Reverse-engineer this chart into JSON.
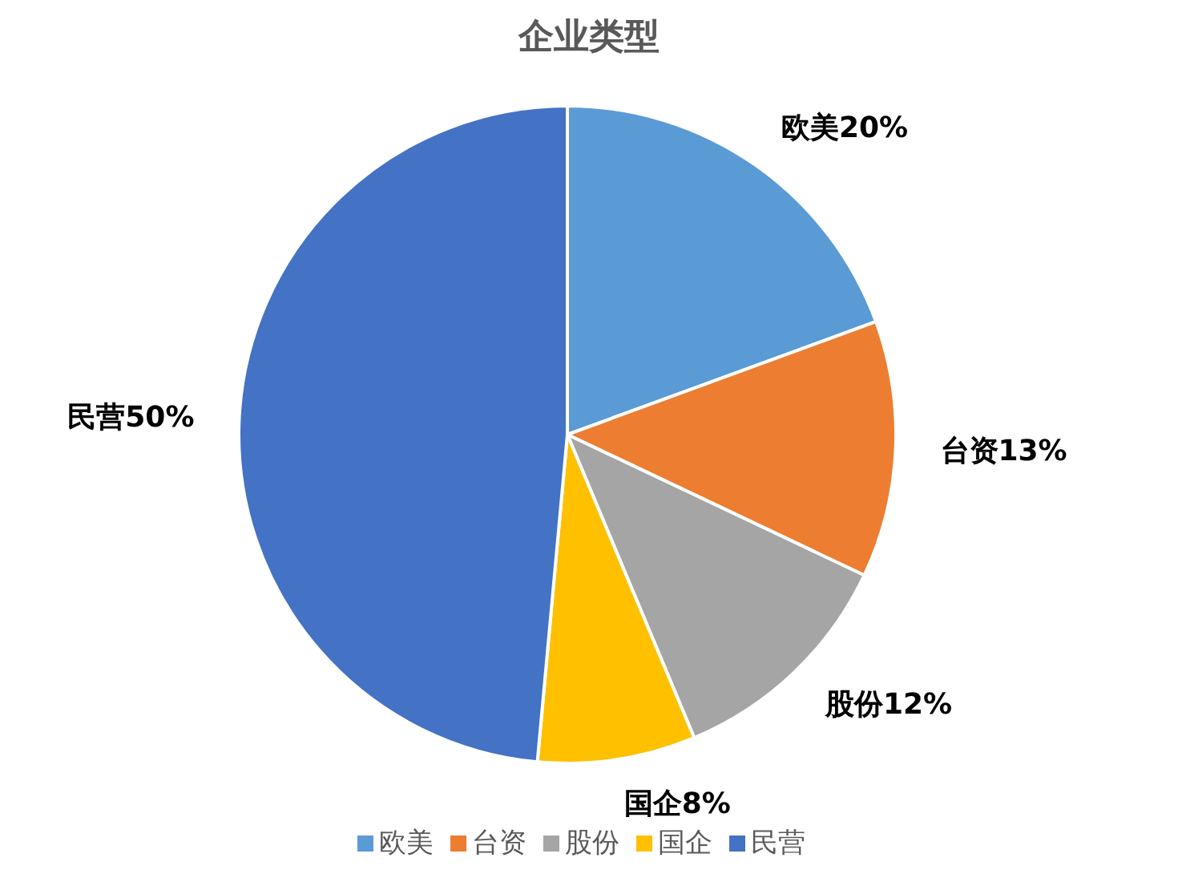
{
  "chart_data": {
    "type": "pie",
    "title": "企业类型",
    "categories": [
      "欧美",
      "台资",
      "股份",
      "国企",
      "民营"
    ],
    "values": [
      20,
      13,
      12,
      8,
      50
    ],
    "value_labels": [
      "20%",
      "13%",
      "12%",
      "8%",
      "50%"
    ],
    "colors": [
      "#5b9bd5",
      "#ed7d31",
      "#a5a5a5",
      "#ffc000",
      "#4472c4"
    ],
    "legend": "bottom"
  }
}
